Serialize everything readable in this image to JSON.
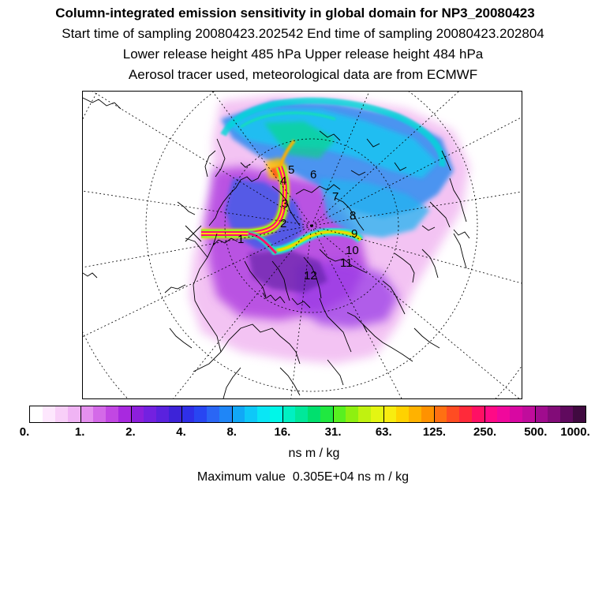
{
  "titles": {
    "main": "Column-integrated emission sensitivity in global domain for NP3_20080423",
    "sampling": "Start time of sampling 20080423.202542     End time of sampling 20080423.202804",
    "release": "Lower release height  485 hPa        Upper release height  484 hPa",
    "tracer": "Aerosol tracer used, meteorological data are from ECMWF"
  },
  "colorbar": {
    "colors": [
      "#ffffff",
      "#fde7fd",
      "#f8cff8",
      "#f0b4f4",
      "#e590ef",
      "#d46ae8",
      "#c247e3",
      "#a829df",
      "#8d1fdc",
      "#7321e0",
      "#5a22de",
      "#3d23d8",
      "#2f2fe8",
      "#2846f2",
      "#2a66f5",
      "#1f86f7",
      "#11a8f6",
      "#0ec8f8",
      "#09e6f5",
      "#00f7e8",
      "#00f0c2",
      "#00e89a",
      "#00e06e",
      "#20e840",
      "#58f020",
      "#8ef010",
      "#c0f210",
      "#e4f612",
      "#f8ec10",
      "#ffd200",
      "#ffb200",
      "#ff9200",
      "#ff7012",
      "#ff4c22",
      "#ff2a3a",
      "#ff1064",
      "#ff0a86",
      "#f0089c",
      "#d808a2",
      "#c00c9c",
      "#a00c8e",
      "#820c78",
      "#600a5e",
      "#400a40"
    ],
    "tick_labels": [
      "0.",
      "1.",
      "2.",
      "4.",
      "8.",
      "16.",
      "31.",
      "63.",
      "125.",
      "250.",
      "500.",
      "1000."
    ],
    "unit": "ns m / kg"
  },
  "max_value": {
    "label": "Maximum value",
    "value": "0.305E+04",
    "unit": "ns m / kg"
  },
  "map": {
    "day_labels": [
      "1",
      "2",
      "3",
      "4",
      "5",
      "6",
      "7",
      "8",
      "9",
      "10",
      "11",
      "12"
    ]
  }
}
